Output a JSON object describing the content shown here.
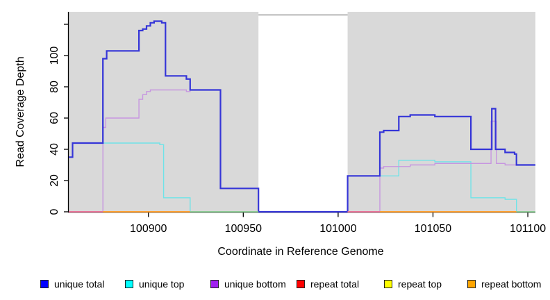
{
  "figure": {
    "kind": "read-coverage-depth-plot"
  },
  "axes": {
    "x": {
      "label": "Coordinate in Reference Genome",
      "ticks": [
        100900,
        100950,
        101000,
        101050,
        101100
      ],
      "domain": [
        100858,
        101104
      ]
    },
    "y": {
      "label": "Read Coverage Depth",
      "ticks": [
        0,
        20,
        40,
        60,
        80,
        100,
        120
      ],
      "labeled_ticks": [
        0,
        20,
        40,
        60,
        80,
        100
      ],
      "domain": [
        0,
        128
      ]
    }
  },
  "panel": {
    "background": "#d9d9d9",
    "coverage_gap": {
      "from": 100958,
      "to": 101005,
      "fill": "#ffffff",
      "top_border": "#9a9a9a"
    }
  },
  "chart_data": {
    "type": "line",
    "line_style": "step-after",
    "title": "",
    "xlabel": "Coordinate in Reference Genome",
    "ylabel": "Read Coverage Depth",
    "xlim": [
      100858,
      101104
    ],
    "ylim": [
      0,
      128
    ],
    "grid": false,
    "no_coverage_region": [
      100958,
      101005
    ],
    "series": [
      {
        "name": "repeat total",
        "color": "#e05050",
        "width": 1.2,
        "points": [
          [
            100858,
            0
          ],
          [
            101104,
            0
          ]
        ]
      },
      {
        "name": "repeat top",
        "color": "#e8e850",
        "width": 1.2,
        "points": [
          [
            100858,
            0
          ],
          [
            101104,
            0
          ]
        ]
      },
      {
        "name": "unique top",
        "color": "#6fe3e8",
        "width": 1.4,
        "points": [
          [
            100858,
            35
          ],
          [
            100860,
            44
          ],
          [
            100906,
            43
          ],
          [
            100908,
            9
          ],
          [
            100922,
            0
          ],
          [
            101005,
            23
          ],
          [
            101032,
            33
          ],
          [
            101051,
            32
          ],
          [
            101070,
            9
          ],
          [
            101088,
            8
          ],
          [
            101094,
            0
          ],
          [
            101104,
            0
          ]
        ]
      },
      {
        "name": "unique bottom",
        "color": "#c796e0",
        "width": 1.4,
        "points": [
          [
            100858,
            0
          ],
          [
            100876,
            54
          ],
          [
            100877.5,
            60
          ],
          [
            100895,
            72
          ],
          [
            100897,
            75
          ],
          [
            100899,
            77
          ],
          [
            100901,
            78
          ],
          [
            100920,
            77
          ],
          [
            100922,
            78
          ],
          [
            100938,
            15
          ],
          [
            100958,
            0
          ],
          [
            101022,
            28
          ],
          [
            101024,
            29
          ],
          [
            101038,
            30
          ],
          [
            101051,
            31
          ],
          [
            101080.6,
            58
          ],
          [
            101083.4,
            31
          ],
          [
            101088,
            30
          ],
          [
            101104,
            30
          ]
        ]
      },
      {
        "name": "unique total",
        "color": "#3535d8",
        "width": 2.2,
        "points": [
          [
            100858,
            35
          ],
          [
            100860,
            44
          ],
          [
            100876,
            98
          ],
          [
            100878,
            103
          ],
          [
            100895,
            116
          ],
          [
            100897,
            117
          ],
          [
            100899,
            119
          ],
          [
            100901,
            121
          ],
          [
            100903,
            122
          ],
          [
            100907,
            121
          ],
          [
            100909,
            87
          ],
          [
            100920,
            85
          ],
          [
            100922,
            78
          ],
          [
            100938,
            15
          ],
          [
            100958,
            0
          ],
          [
            101005,
            23
          ],
          [
            101022,
            51
          ],
          [
            101024,
            52
          ],
          [
            101032,
            61
          ],
          [
            101038,
            62
          ],
          [
            101051,
            61
          ],
          [
            101070,
            40
          ],
          [
            101081,
            66
          ],
          [
            101083,
            40
          ],
          [
            101088,
            38
          ],
          [
            101093,
            37
          ],
          [
            101094,
            30
          ],
          [
            101104,
            30
          ]
        ]
      }
    ],
    "zero_line_segments": [
      {
        "from": 100858,
        "to": 100876,
        "color": "#e87398",
        "width": 2
      },
      {
        "from": 100876,
        "to": 100922,
        "color": "#ff9f2e",
        "width": 2
      },
      {
        "from": 100922,
        "to": 100958,
        "color": "#85c885",
        "width": 1.6
      },
      {
        "from": 101005,
        "to": 101022,
        "color": "#e87398",
        "width": 2
      },
      {
        "from": 101022,
        "to": 101094,
        "color": "#ff9f2e",
        "width": 2
      },
      {
        "from": 101094,
        "to": 101104,
        "color": "#85c885",
        "width": 1.6
      }
    ]
  },
  "legend": {
    "items": [
      {
        "label": "unique total",
        "color": "#0000ff"
      },
      {
        "label": "unique top",
        "color": "#00ffff"
      },
      {
        "label": "unique bottom",
        "color": "#a020f0"
      },
      {
        "label": "repeat total",
        "color": "#ff0000"
      },
      {
        "label": "repeat top",
        "color": "#ffff00"
      },
      {
        "label": "repeat bottom",
        "color": "#ffa500"
      }
    ]
  }
}
